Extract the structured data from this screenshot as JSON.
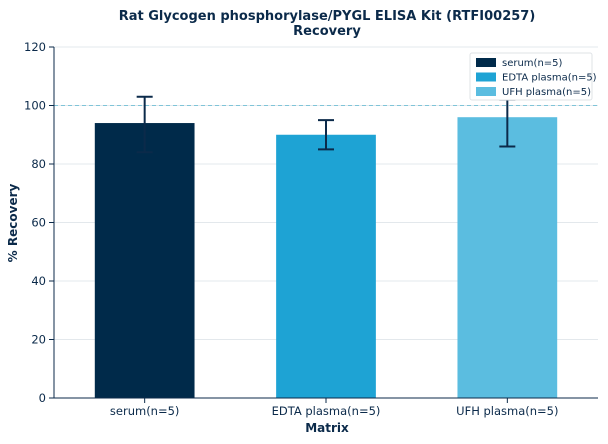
{
  "chart_data": {
    "type": "bar",
    "title": "Rat Glycogen phosphorylase/PYGL ELISA Kit (RTFI00257)",
    "subtitle": "Recovery",
    "xlabel": "Matrix",
    "ylabel": "% Recovery",
    "categories": [
      "serum(n=5)",
      "EDTA plasma(n=5)",
      "UFH plasma(n=5)"
    ],
    "values": [
      94,
      90,
      96
    ],
    "error_low": [
      84,
      85,
      86
    ],
    "error_high": [
      103,
      95,
      102
    ],
    "colors": [
      "#002a4a",
      "#1ea3d4",
      "#5bbde0"
    ],
    "ylim": [
      0,
      120
    ],
    "yticks": [
      0,
      20,
      40,
      60,
      80,
      100,
      120
    ],
    "reference_line": 100,
    "reference_color": "#7fc4d8",
    "grid": true,
    "legend_position": "top-right",
    "legend": [
      "serum(n=5)",
      "EDTA plasma(n=5)",
      "UFH plasma(n=5)"
    ]
  }
}
